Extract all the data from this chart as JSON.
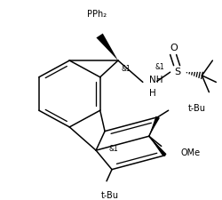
{
  "bg": "#ffffff",
  "lc": "#000000",
  "lw": 1.1,
  "figsize": [
    2.51,
    2.25
  ],
  "dpi": 100,
  "xlim": [
    0,
    251
  ],
  "ylim": [
    225,
    0
  ]
}
